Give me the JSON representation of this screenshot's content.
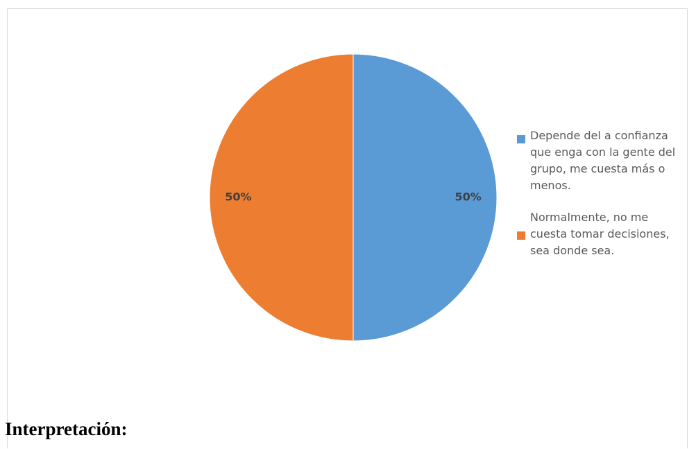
{
  "chart_data": {
    "type": "pie",
    "title": "",
    "categories": [
      "Depende del a confianza que enga con la gente del grupo, me cuesta más o menos.",
      "Normalmente, no me cuesta tomar decisiones, sea donde sea."
    ],
    "values": [
      50,
      50
    ],
    "data_labels": [
      "50%",
      "50%"
    ],
    "colors": [
      "#5b9bd5",
      "#ed7d31"
    ],
    "legend": {
      "position": "right",
      "entries": [
        {
          "lines": [
            "Depende del a confianza",
            "que enga con la gente del",
            "grupo, me cuesta más o",
            "menos."
          ],
          "color": "#5b9bd5"
        },
        {
          "lines": [
            "Normalmente, no me",
            "cuesta tomar decisiones,",
            "sea donde sea."
          ],
          "color": "#ed7d31"
        }
      ]
    }
  },
  "document": {
    "heading": "Interpretación:"
  }
}
